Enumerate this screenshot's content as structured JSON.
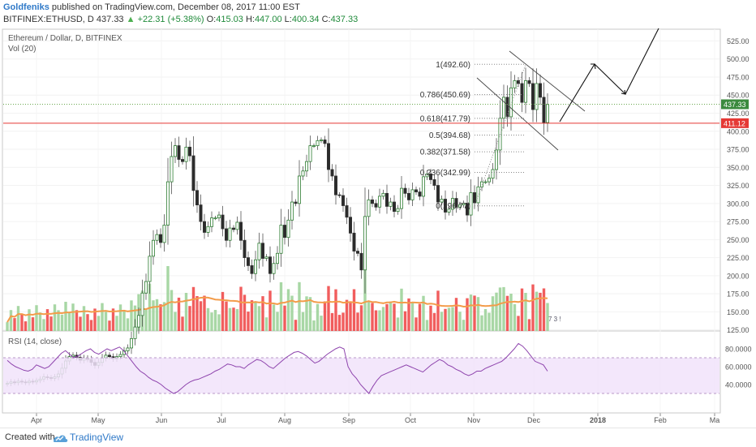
{
  "header": {
    "author": "Goldfeniks",
    "published": "published on TradingView.com, December 08, 2017 11:00 EST",
    "symbol_line": {
      "symbol": "BITFINEX:ETHUSD, D",
      "last": "437.33",
      "change": "+22.31 (+5.38%)",
      "o_label": "O:",
      "o": "415.03",
      "h_label": "H:",
      "h": "447.00",
      "l_label": "L:",
      "l": "400.34",
      "c_label": "C:",
      "c": "437.33"
    }
  },
  "legend": {
    "title": "Ethereum / Dollar, D, BITFINEX",
    "volume": "Vol (20)"
  },
  "rsi": {
    "title": "RSI (14, close)",
    "axis_ticks": [
      "80.0000",
      "60.0000",
      "40.0000"
    ],
    "band": [
      30,
      70
    ],
    "values": [
      67,
      63,
      60,
      58,
      56,
      55,
      57,
      62,
      60,
      58,
      60,
      65,
      70,
      75,
      78,
      74,
      70,
      72,
      75,
      78,
      80,
      76,
      74,
      77,
      80,
      78,
      80,
      82,
      78,
      72,
      66,
      60,
      55,
      52,
      48,
      45,
      43,
      40,
      36,
      33,
      30,
      32,
      36,
      40,
      43,
      45,
      46,
      48,
      50,
      52,
      55,
      57,
      60,
      63,
      62,
      60,
      60,
      58,
      62,
      65,
      68,
      67,
      64,
      60,
      58,
      62,
      66,
      70,
      73,
      76,
      77,
      75,
      72,
      68,
      64,
      66,
      70,
      74,
      77,
      80,
      82,
      80,
      60,
      52,
      47,
      40,
      35,
      30,
      38,
      45,
      50,
      52,
      54,
      56,
      58,
      60,
      62,
      60,
      58,
      56,
      54,
      58,
      62,
      65,
      68,
      66,
      62,
      60,
      57,
      55,
      52,
      50,
      52,
      55,
      55,
      58,
      60,
      62,
      64,
      66,
      70,
      75,
      80,
      86,
      83,
      78,
      72,
      66,
      64,
      62,
      55
    ]
  },
  "price_axis": {
    "ticks": [
      "525.00",
      "500.00",
      "475.00",
      "450.00",
      "425.00",
      "400.00",
      "375.00",
      "350.00",
      "325.00",
      "300.00",
      "275.00",
      "250.00",
      "225.00",
      "200.00",
      "175.00",
      "150.00",
      "125.00"
    ],
    "last_label": "437.33",
    "level_label": "411.12"
  },
  "time_axis": {
    "ticks": [
      "Apr",
      "May",
      "Jun",
      "Jul",
      "Aug",
      "Sep",
      "Oct",
      "Nov",
      "Dec",
      "2018",
      "Feb",
      "Ma"
    ]
  },
  "fibonacci": [
    {
      "label": "1(492.60)",
      "value": 492.6
    },
    {
      "label": "0.786(450.69)",
      "value": 450.69
    },
    {
      "label": "0.618(417.79)",
      "value": 417.79
    },
    {
      "label": "0.5(394.68)",
      "value": 394.68
    },
    {
      "label": "0.382(371.58)",
      "value": 371.58
    },
    {
      "label": "0.236(342.99)",
      "value": 342.99
    },
    {
      "label": "0(296.77)",
      "value": 296.77
    }
  ],
  "volume_bars_label": "7 3 !",
  "chart_data": {
    "type": "candlestick",
    "title": "Ethereum / Dollar, D, BITFINEX",
    "ylim": [
      125,
      535
    ],
    "horizontal_level": 411.12,
    "last_price": 437.33,
    "close_series": [
      51,
      53,
      52,
      54,
      53,
      52,
      54,
      53,
      55,
      57,
      60,
      59,
      58,
      60,
      64,
      72,
      82,
      88,
      90,
      87,
      83,
      86,
      84,
      80,
      76,
      80,
      86,
      90,
      88,
      85,
      88,
      91,
      96,
      100,
      113,
      129,
      145,
      176,
      192,
      227,
      249,
      257,
      246,
      270,
      330,
      365,
      380,
      361,
      358,
      378,
      366,
      318,
      298,
      275,
      260,
      268,
      280,
      280,
      284,
      265,
      249,
      266,
      264,
      274,
      249,
      225,
      214,
      203,
      222,
      245,
      224,
      226,
      203,
      217,
      231,
      270,
      253,
      277,
      302,
      300,
      338,
      345,
      358,
      380,
      380,
      387,
      388,
      383,
      347,
      338,
      312,
      311,
      297,
      281,
      259,
      234,
      231,
      208,
      282,
      305,
      300,
      295,
      310,
      314,
      296,
      302,
      289,
      293,
      321,
      314,
      305,
      319,
      316,
      310,
      337,
      341,
      333,
      325,
      302,
      306,
      288,
      292,
      307,
      295,
      298,
      300,
      284,
      315,
      301,
      323,
      330,
      330,
      335,
      347,
      374,
      418,
      447,
      420,
      460,
      470,
      466,
      440,
      470,
      466,
      430,
      466,
      447,
      412,
      437
    ],
    "annotations": [
      "Fibonacci retracement 0 to 1",
      "descending channel",
      "projected path arrow"
    ]
  }
}
